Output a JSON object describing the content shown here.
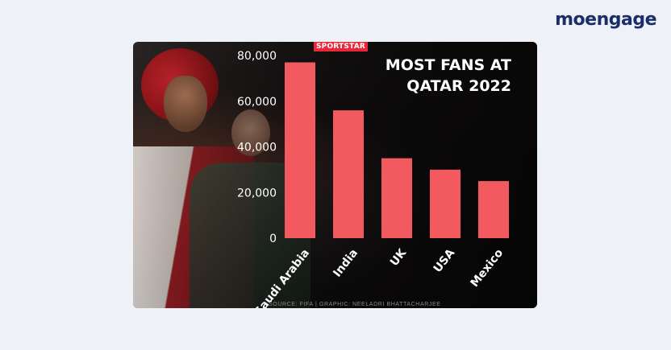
{
  "brand": {
    "name": "moengage",
    "text_color": "#1b2d6b",
    "accent_color": "#2f6bff"
  },
  "card": {
    "badge": "SPORTSTAR",
    "source": "SOURCE: FIFA | GRAPHIC: NEELADRI BHATTACHARJEE"
  },
  "chart_data": {
    "type": "bar",
    "title": "MOST FANS AT QATAR 2022",
    "categories": [
      "Saudi Arabia",
      "India",
      "UK",
      "USA",
      "Mexico"
    ],
    "values": [
      77000,
      56000,
      35000,
      30000,
      25000
    ],
    "yticks": [
      "0",
      "20,000",
      "40,000",
      "60,000",
      "80,000"
    ],
    "ytick_values": [
      0,
      20000,
      40000,
      60000,
      80000
    ],
    "ylim": [
      0,
      80000
    ],
    "bar_color": "#f25a5f",
    "grid": false
  }
}
